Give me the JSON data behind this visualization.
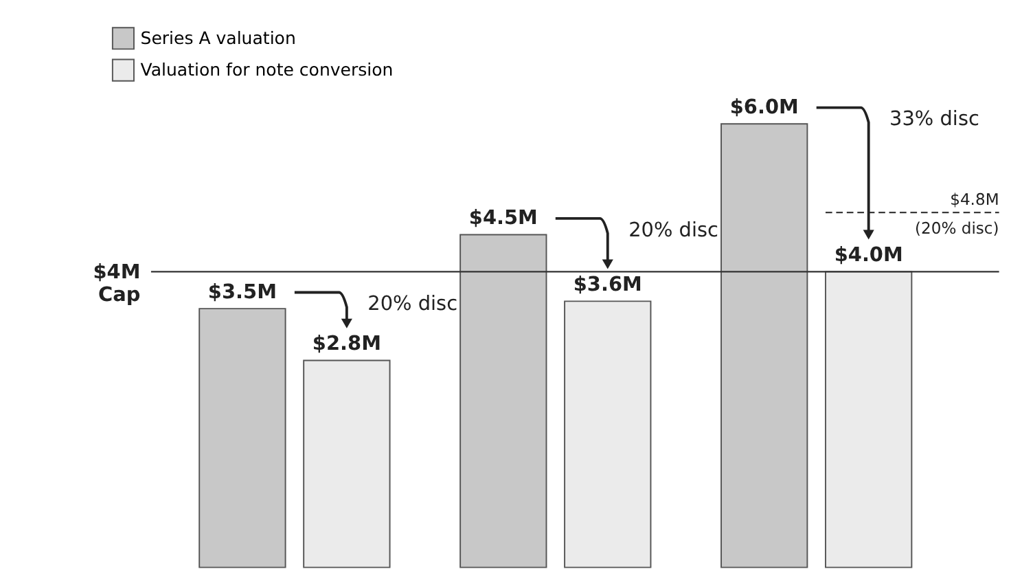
{
  "chart_data": {
    "type": "bar",
    "categories": [
      null,
      null,
      null
    ],
    "series": [
      {
        "name": "Series A valuation",
        "color": "#c8c8c8",
        "values": [
          3.5,
          4.5,
          6.0
        ],
        "value_labels": [
          "$3.5M",
          "$4.5M",
          "$6.0M"
        ]
      },
      {
        "name": "Valuation for note conversion",
        "color": "#ebebeb",
        "values": [
          2.8,
          3.6,
          4.0
        ],
        "value_labels": [
          "$2.8M",
          "$3.6M",
          "$4.0M"
        ]
      }
    ],
    "ref_lines": [
      {
        "axis": "y",
        "value": 4,
        "label": "$4M Cap",
        "color": "#333333",
        "line_style": "solid"
      },
      {
        "axis": "y",
        "value": 4.8,
        "label": "$4.8M\n(20% disc)",
        "color": "#222222",
        "line_style": "dashed"
      }
    ],
    "annotations": [
      "20% disc",
      "20% disc",
      "33% disc"
    ],
    "legend": "top left"
  }
}
